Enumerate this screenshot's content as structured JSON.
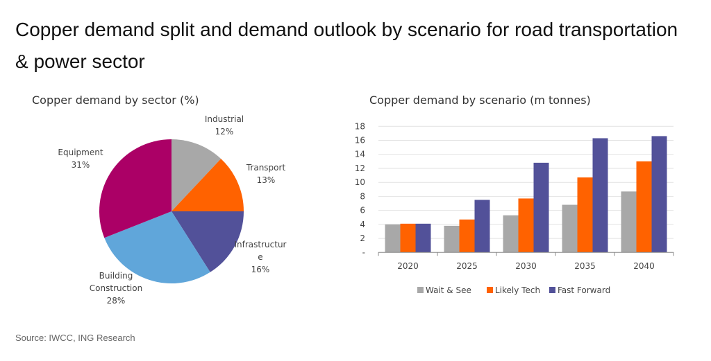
{
  "title": "Copper demand split and demand outlook by scenario for road transportation & power sector",
  "source": "Source: IWCC, ING Research",
  "chart_data": [
    {
      "type": "pie",
      "title": "Copper demand by sector (%)",
      "start": "top",
      "direction": "clockwise",
      "slices": [
        {
          "label": [
            "Industrial"
          ],
          "value": 12,
          "value_label": "12%",
          "color": "#a8a8a8"
        },
        {
          "label": [
            "Transport"
          ],
          "value": 13,
          "value_label": "13%",
          "color": "#ff6200"
        },
        {
          "label": [
            "Infrastructur",
            "e"
          ],
          "value": 16,
          "value_label": "16%",
          "color": "#525199"
        },
        {
          "label": [
            "Building",
            "Construction"
          ],
          "value": 28,
          "value_label": "28%",
          "color": "#60a6da"
        },
        {
          "label": [
            "Equipment"
          ],
          "value": 31,
          "value_label": "31%",
          "color": "#ab0066"
        }
      ]
    },
    {
      "type": "bar",
      "title": "Copper demand by scenario (m tonnes)",
      "categories": [
        "2020",
        "2025",
        "2030",
        "2035",
        "2040"
      ],
      "ylim": [
        0,
        18
      ],
      "yticks": [
        0,
        2,
        4,
        6,
        8,
        10,
        12,
        14,
        16,
        18
      ],
      "ytick_labels": [
        "-",
        "2",
        "4",
        "6",
        "8",
        "10",
        "12",
        "14",
        "16",
        "18"
      ],
      "grid": true,
      "legend": "bottom",
      "series": [
        {
          "name": "Wait & See",
          "color": "#a8a8a8",
          "values": [
            4.0,
            3.8,
            5.3,
            6.8,
            8.7
          ]
        },
        {
          "name": "Likely Tech",
          "color": "#ff6200",
          "values": [
            4.1,
            4.7,
            7.7,
            10.7,
            13.0
          ]
        },
        {
          "name": "Fast Forward",
          "color": "#525199",
          "values": [
            4.1,
            7.5,
            12.8,
            16.3,
            16.6
          ]
        }
      ]
    }
  ]
}
